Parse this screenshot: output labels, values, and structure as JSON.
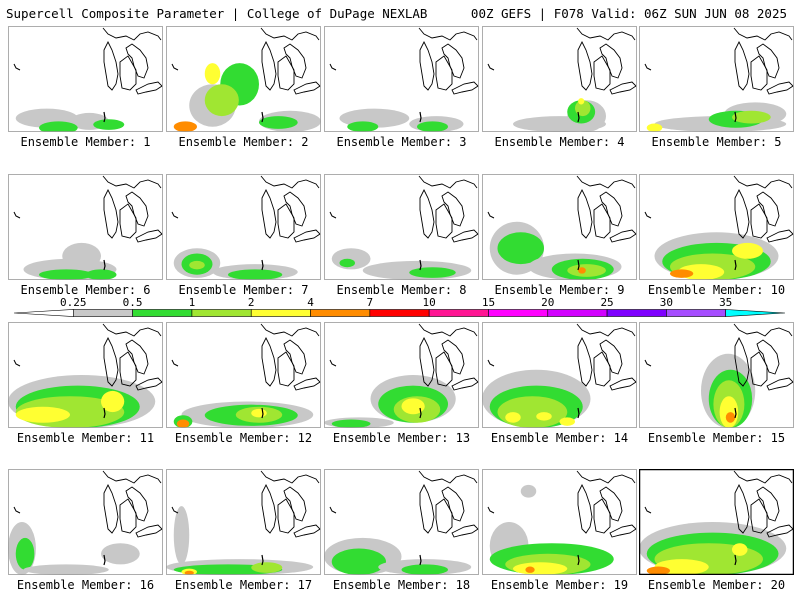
{
  "header": {
    "title": "Supercell Composite Parameter | College of DuPage NEXLAB",
    "run_info": "00Z GEFS | F078 Valid: 06Z SUN JUN 08 2025"
  },
  "member_label_prefix": "Ensemble Member: ",
  "members": [
    {
      "id": 1,
      "caption": "Ensemble Member: 1",
      "blobs": [
        [
          0.05,
          0.78,
          0.4,
          0.18,
          1
        ],
        [
          0.4,
          0.82,
          0.25,
          0.16,
          1
        ],
        [
          0.2,
          0.9,
          0.25,
          0.12,
          2
        ],
        [
          0.55,
          0.88,
          0.2,
          0.1,
          2
        ]
      ]
    },
    {
      "id": 2,
      "caption": "Ensemble Member: 2",
      "blobs": [
        [
          0.15,
          0.55,
          0.3,
          0.4,
          1
        ],
        [
          0.35,
          0.35,
          0.25,
          0.4,
          2
        ],
        [
          0.25,
          0.55,
          0.22,
          0.3,
          3
        ],
        [
          0.25,
          0.35,
          0.1,
          0.2,
          4
        ],
        [
          0.05,
          0.9,
          0.15,
          0.1,
          5
        ],
        [
          0.6,
          0.8,
          0.4,
          0.2,
          1
        ],
        [
          0.6,
          0.85,
          0.25,
          0.12,
          2
        ]
      ]
    },
    {
      "id": 3,
      "caption": "Ensemble Member: 3",
      "blobs": [
        [
          0.1,
          0.78,
          0.45,
          0.18,
          1
        ],
        [
          0.55,
          0.85,
          0.35,
          0.15,
          1
        ],
        [
          0.15,
          0.9,
          0.2,
          0.1,
          2
        ],
        [
          0.6,
          0.9,
          0.2,
          0.1,
          2
        ]
      ]
    },
    {
      "id": 4,
      "caption": "Ensemble Member: 4",
      "blobs": [
        [
          0.2,
          0.85,
          0.6,
          0.15,
          1
        ],
        [
          0.55,
          0.7,
          0.25,
          0.3,
          1
        ],
        [
          0.55,
          0.7,
          0.18,
          0.22,
          2
        ],
        [
          0.6,
          0.7,
          0.1,
          0.15,
          3
        ],
        [
          0.62,
          0.68,
          0.04,
          0.06,
          4
        ]
      ]
    },
    {
      "id": 5,
      "caption": "Ensemble Member: 5",
      "blobs": [
        [
          0.1,
          0.85,
          0.85,
          0.15,
          1
        ],
        [
          0.55,
          0.72,
          0.4,
          0.22,
          1
        ],
        [
          0.45,
          0.8,
          0.35,
          0.16,
          2
        ],
        [
          0.6,
          0.8,
          0.25,
          0.12,
          3
        ],
        [
          0.05,
          0.92,
          0.1,
          0.08,
          4
        ]
      ]
    },
    {
      "id": 6,
      "caption": "Ensemble Member: 6",
      "blobs": [
        [
          0.1,
          0.8,
          0.6,
          0.2,
          1
        ],
        [
          0.35,
          0.65,
          0.25,
          0.25,
          1
        ],
        [
          0.2,
          0.9,
          0.35,
          0.1,
          2
        ],
        [
          0.5,
          0.9,
          0.2,
          0.1,
          2
        ]
      ]
    },
    {
      "id": 7,
      "caption": "Ensemble Member: 7",
      "blobs": [
        [
          0.05,
          0.7,
          0.3,
          0.28,
          1
        ],
        [
          0.1,
          0.75,
          0.2,
          0.2,
          2
        ],
        [
          0.3,
          0.85,
          0.55,
          0.15,
          1
        ],
        [
          0.4,
          0.9,
          0.35,
          0.1,
          2
        ],
        [
          0.15,
          0.82,
          0.1,
          0.08,
          3
        ]
      ]
    },
    {
      "id": 8,
      "caption": "Ensemble Member: 8",
      "blobs": [
        [
          0.05,
          0.7,
          0.25,
          0.2,
          1
        ],
        [
          0.25,
          0.82,
          0.7,
          0.18,
          1
        ],
        [
          0.55,
          0.88,
          0.3,
          0.1,
          2
        ],
        [
          0.1,
          0.8,
          0.1,
          0.08,
          2
        ]
      ]
    },
    {
      "id": 9,
      "caption": "Ensemble Member: 9",
      "blobs": [
        [
          0.05,
          0.45,
          0.35,
          0.5,
          1
        ],
        [
          0.1,
          0.55,
          0.3,
          0.3,
          2
        ],
        [
          0.3,
          0.75,
          0.6,
          0.25,
          1
        ],
        [
          0.45,
          0.8,
          0.4,
          0.2,
          2
        ],
        [
          0.55,
          0.85,
          0.25,
          0.12,
          3
        ],
        [
          0.62,
          0.88,
          0.05,
          0.06,
          5
        ]
      ]
    },
    {
      "id": 10,
      "caption": "Ensemble Member: 10",
      "blobs": [
        [
          0.1,
          0.55,
          0.8,
          0.45,
          1
        ],
        [
          0.15,
          0.65,
          0.7,
          0.35,
          2
        ],
        [
          0.2,
          0.75,
          0.55,
          0.25,
          3
        ],
        [
          0.25,
          0.85,
          0.3,
          0.15,
          4
        ],
        [
          0.2,
          0.9,
          0.15,
          0.08,
          5
        ],
        [
          0.6,
          0.65,
          0.2,
          0.15,
          4
        ]
      ]
    },
    {
      "id": 11,
      "caption": "Ensemble Member: 11",
      "blobs": [
        [
          0.0,
          0.5,
          0.95,
          0.5,
          1
        ],
        [
          0.05,
          0.6,
          0.8,
          0.4,
          2
        ],
        [
          0.05,
          0.7,
          0.7,
          0.3,
          3
        ],
        [
          0.05,
          0.8,
          0.35,
          0.15,
          4
        ],
        [
          0.6,
          0.65,
          0.15,
          0.2,
          4
        ]
      ]
    },
    {
      "id": 12,
      "caption": "Ensemble Member: 12",
      "blobs": [
        [
          0.1,
          0.75,
          0.85,
          0.25,
          1
        ],
        [
          0.25,
          0.78,
          0.6,
          0.2,
          2
        ],
        [
          0.45,
          0.8,
          0.3,
          0.15,
          3
        ],
        [
          0.55,
          0.82,
          0.1,
          0.08,
          4
        ],
        [
          0.05,
          0.88,
          0.12,
          0.12,
          2
        ],
        [
          0.07,
          0.92,
          0.08,
          0.08,
          5
        ]
      ]
    },
    {
      "id": 13,
      "caption": "Ensemble Member: 13",
      "blobs": [
        [
          0.3,
          0.5,
          0.55,
          0.45,
          1
        ],
        [
          0.35,
          0.6,
          0.45,
          0.35,
          2
        ],
        [
          0.45,
          0.7,
          0.3,
          0.25,
          3
        ],
        [
          0.5,
          0.72,
          0.15,
          0.15,
          4
        ],
        [
          0.0,
          0.9,
          0.45,
          0.1,
          1
        ],
        [
          0.05,
          0.92,
          0.25,
          0.08,
          2
        ]
      ]
    },
    {
      "id": 14,
      "caption": "Ensemble Member: 14",
      "blobs": [
        [
          0.0,
          0.45,
          0.7,
          0.55,
          1
        ],
        [
          0.05,
          0.6,
          0.6,
          0.4,
          2
        ],
        [
          0.1,
          0.7,
          0.45,
          0.3,
          3
        ],
        [
          0.15,
          0.85,
          0.1,
          0.1,
          4
        ],
        [
          0.35,
          0.85,
          0.1,
          0.08,
          4
        ],
        [
          0.5,
          0.9,
          0.1,
          0.08,
          4
        ]
      ]
    },
    {
      "id": 15,
      "caption": "Ensemble Member: 15",
      "blobs": [
        [
          0.4,
          0.3,
          0.35,
          0.7,
          1
        ],
        [
          0.45,
          0.45,
          0.28,
          0.55,
          2
        ],
        [
          0.48,
          0.55,
          0.2,
          0.45,
          3
        ],
        [
          0.52,
          0.7,
          0.12,
          0.3,
          4
        ],
        [
          0.56,
          0.85,
          0.06,
          0.1,
          5
        ]
      ]
    },
    {
      "id": 16,
      "caption": "Ensemble Member: 16",
      "blobs": [
        [
          0.0,
          0.5,
          0.18,
          0.5,
          1
        ],
        [
          0.05,
          0.65,
          0.12,
          0.3,
          2
        ],
        [
          0.1,
          0.9,
          0.55,
          0.1,
          1
        ],
        [
          0.6,
          0.7,
          0.25,
          0.2,
          1
        ]
      ]
    },
    {
      "id": 17,
      "caption": "Ensemble Member: 17",
      "blobs": [
        [
          0.05,
          0.35,
          0.1,
          0.55,
          1
        ],
        [
          0.0,
          0.85,
          0.95,
          0.15,
          1
        ],
        [
          0.05,
          0.9,
          0.7,
          0.1,
          2
        ],
        [
          0.1,
          0.94,
          0.1,
          0.06,
          4
        ],
        [
          0.12,
          0.96,
          0.06,
          0.04,
          5
        ],
        [
          0.55,
          0.88,
          0.2,
          0.1,
          3
        ]
      ]
    },
    {
      "id": 18,
      "caption": "Ensemble Member: 18",
      "blobs": [
        [
          0.0,
          0.65,
          0.5,
          0.35,
          1
        ],
        [
          0.05,
          0.75,
          0.35,
          0.25,
          2
        ],
        [
          0.35,
          0.85,
          0.6,
          0.15,
          1
        ],
        [
          0.5,
          0.9,
          0.3,
          0.1,
          2
        ]
      ]
    },
    {
      "id": 19,
      "caption": "Ensemble Member: 19",
      "blobs": [
        [
          0.25,
          0.15,
          0.1,
          0.12,
          1
        ],
        [
          0.05,
          0.5,
          0.25,
          0.45,
          1
        ],
        [
          0.05,
          0.7,
          0.8,
          0.3,
          2
        ],
        [
          0.15,
          0.8,
          0.55,
          0.2,
          3
        ],
        [
          0.2,
          0.88,
          0.35,
          0.12,
          4
        ],
        [
          0.28,
          0.92,
          0.06,
          0.06,
          5
        ]
      ]
    },
    {
      "id": 20,
      "caption": "Ensemble Member: 20",
      "blobs": [
        [
          0.0,
          0.5,
          0.95,
          0.5,
          1
        ],
        [
          0.05,
          0.6,
          0.85,
          0.4,
          2
        ],
        [
          0.1,
          0.7,
          0.7,
          0.3,
          3
        ],
        [
          0.1,
          0.85,
          0.35,
          0.15,
          4
        ],
        [
          0.05,
          0.92,
          0.15,
          0.08,
          5
        ],
        [
          0.6,
          0.7,
          0.1,
          0.12,
          4
        ]
      ]
    }
  ],
  "colorbar": {
    "thresholds": [
      "0.25",
      "0.5",
      "1",
      "2",
      "4",
      "7",
      "10",
      "15",
      "20",
      "25",
      "30",
      "35"
    ],
    "colors": [
      "#ffffff",
      "#c8c8c8",
      "#32dc32",
      "#a0e632",
      "#ffff32",
      "#ff8c00",
      "#ff0000",
      "#ff1493",
      "#ff00ff",
      "#d200ff",
      "#7f00ff",
      "#a64dff",
      "#00ffff"
    ],
    "level_colors": [
      "#c8c8c8",
      "#32dc32",
      "#a0e632",
      "#ffff32",
      "#ff8c00",
      "#ff0000"
    ]
  },
  "map_features": {
    "state_borders": "black",
    "lake_outline": "black"
  }
}
